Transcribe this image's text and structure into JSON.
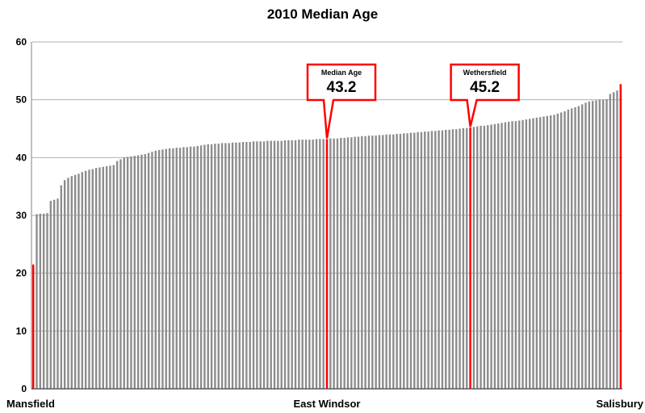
{
  "chart_data": {
    "type": "bar",
    "title": "2010 Median Age",
    "xlabel": "",
    "ylabel": "",
    "ylim": [
      0,
      60
    ],
    "yticks": [
      0,
      10,
      20,
      30,
      40,
      50,
      60
    ],
    "grid": true,
    "colors": {
      "bar": "#8c8c8c",
      "highlight": "#ff0000",
      "grid": "#b0b0b0"
    },
    "x_tick_labels": [
      {
        "label": "Mansfield",
        "index": 0
      },
      {
        "label": "East Windsor",
        "index": 84
      },
      {
        "label": "Salisbury",
        "index": 168
      }
    ],
    "highlighted_indices": [
      0,
      84,
      125,
      168
    ],
    "annotations": [
      {
        "label": "Median Age",
        "value": "43.2",
        "index": 84
      },
      {
        "label": "Wethersfield",
        "value": "45.2",
        "index": 125
      }
    ],
    "values": [
      21.5,
      30.2,
      30.3,
      30.3,
      30.4,
      32.5,
      32.7,
      32.9,
      35.2,
      36.1,
      36.5,
      36.8,
      37.0,
      37.2,
      37.5,
      37.7,
      37.9,
      38.0,
      38.2,
      38.3,
      38.4,
      38.5,
      38.6,
      38.7,
      39.4,
      39.7,
      40.0,
      40.1,
      40.2,
      40.3,
      40.4,
      40.5,
      40.6,
      40.8,
      41.0,
      41.2,
      41.3,
      41.4,
      41.5,
      41.6,
      41.6,
      41.7,
      41.7,
      41.8,
      41.8,
      41.9,
      41.9,
      42.0,
      42.1,
      42.2,
      42.3,
      42.3,
      42.4,
      42.4,
      42.5,
      42.5,
      42.5,
      42.6,
      42.6,
      42.6,
      42.7,
      42.7,
      42.7,
      42.8,
      42.8,
      42.8,
      42.8,
      42.9,
      42.9,
      42.9,
      42.9,
      42.9,
      43.0,
      43.0,
      43.0,
      43.0,
      43.1,
      43.1,
      43.1,
      43.1,
      43.1,
      43.2,
      43.2,
      43.2,
      43.2,
      43.3,
      43.3,
      43.3,
      43.4,
      43.4,
      43.5,
      43.5,
      43.6,
      43.6,
      43.7,
      43.7,
      43.8,
      43.8,
      43.8,
      43.9,
      43.9,
      44.0,
      44.0,
      44.0,
      44.1,
      44.1,
      44.2,
      44.2,
      44.3,
      44.3,
      44.4,
      44.4,
      44.5,
      44.5,
      44.6,
      44.6,
      44.7,
      44.7,
      44.8,
      44.8,
      44.9,
      44.9,
      45.0,
      45.1,
      45.1,
      45.2,
      45.3,
      45.4,
      45.5,
      45.5,
      45.6,
      45.7,
      45.8,
      45.9,
      46.0,
      46.1,
      46.2,
      46.3,
      46.3,
      46.4,
      46.5,
      46.6,
      46.7,
      46.8,
      46.9,
      47.0,
      47.1,
      47.2,
      47.3,
      47.4,
      47.6,
      47.8,
      48.0,
      48.3,
      48.5,
      48.7,
      48.9,
      49.2,
      49.5,
      49.7,
      49.8,
      49.9,
      50.0,
      50.0,
      50.1,
      51.0,
      51.3,
      51.6,
      52.7
    ]
  }
}
